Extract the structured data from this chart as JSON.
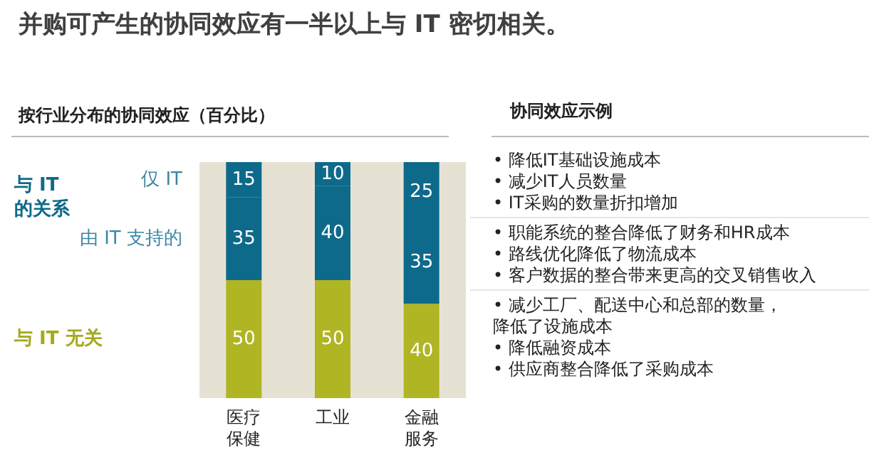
{
  "chart_data": {
    "type": "bar",
    "stacked": true,
    "data_labels": true,
    "title": "并购可产生的协同效应有一半以上与 IT 密切相关。",
    "subtitle": "按行业分布的协同效应（百分比）",
    "categories": [
      "医疗保健",
      "工业",
      "金融服务"
    ],
    "series": [
      {
        "name": "与 IT 无关",
        "color": "#b0b523",
        "values": [
          50,
          50,
          40
        ]
      },
      {
        "name": "由 IT 支持的",
        "color": "#0e6a8b",
        "values": [
          35,
          40,
          35
        ]
      },
      {
        "name": "仅 IT",
        "color": "#0e6a8b",
        "values": [
          15,
          10,
          25
        ]
      }
    ],
    "annotations": [
      "与 IT\n的关系",
      "协同效应示例",
      "• 降低IT基础设施成本\n• 减少IT人员数量\n• IT采购的数量折扣增加",
      "• 职能系统的整合降低了财务和HR成本\n• 路线优化降低了物流成本\n• 客户数据的整合带来更高的交叉销售收入",
      "• 减少工厂、配送中心和总部的数量，降低了设施成本\n• 降低融资成本\n• 供应商整合降低了采购成本"
    ],
    "legend": false
  }
}
